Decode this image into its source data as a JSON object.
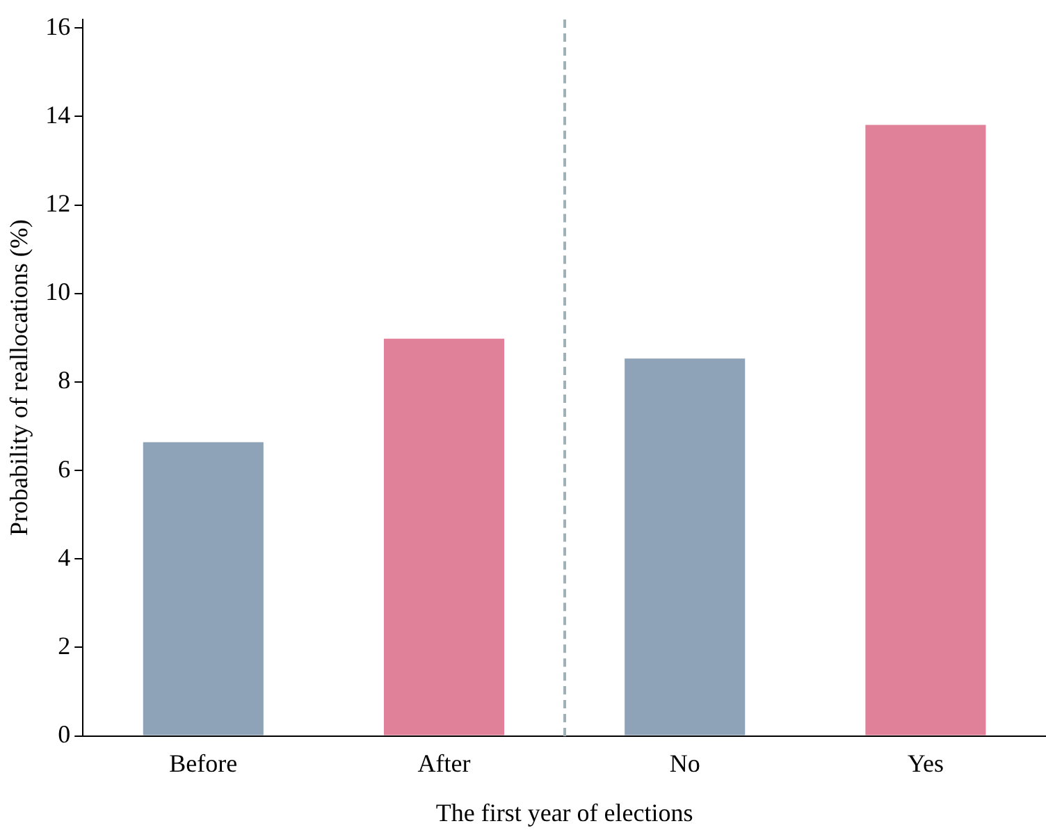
{
  "chart_data": {
    "type": "bar",
    "xlabel": "The first year of elections",
    "ylabel": "Probability of reallocations (%)",
    "categories": [
      "Before",
      "After",
      "No",
      "Yes"
    ],
    "values": [
      6.64,
      8.98,
      8.53,
      13.81
    ],
    "colors": [
      "#8fa3b8",
      "#e08099",
      "#8fa3b8",
      "#e08099"
    ],
    "ylim": [
      0,
      16.2
    ],
    "yticks": [
      0,
      2,
      4,
      6,
      8,
      10,
      12,
      14,
      16
    ],
    "grid": false,
    "legend": false
  }
}
